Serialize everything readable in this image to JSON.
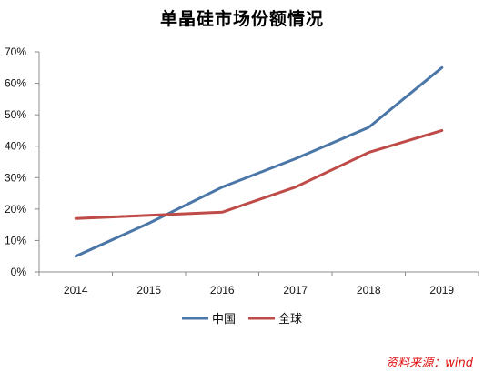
{
  "chart_data": {
    "type": "line",
    "title": "单晶硅市场份额情况",
    "categories": [
      "2014",
      "2015",
      "2016",
      "2017",
      "2018",
      "2019"
    ],
    "series": [
      {
        "name": "中国",
        "color": "#4a76a8",
        "values": [
          5,
          15.5,
          27,
          36,
          46,
          65
        ]
      },
      {
        "name": "全球",
        "color": "#be4b48",
        "values": [
          17,
          18,
          19,
          27,
          38,
          45
        ]
      }
    ],
    "yticks": [
      "0%",
      "10%",
      "20%",
      "30%",
      "40%",
      "50%",
      "60%",
      "70%"
    ],
    "ylim": [
      0,
      70
    ],
    "grid": false,
    "legend_position": "bottom"
  },
  "source_text": "资料来源：wind"
}
